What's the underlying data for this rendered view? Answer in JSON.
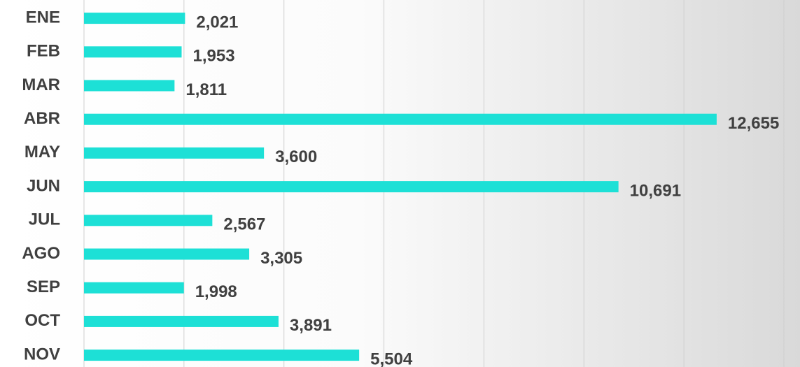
{
  "chart_data": {
    "type": "bar",
    "orientation": "horizontal",
    "categories": [
      "ENE",
      "FEB",
      "MAR",
      "ABR",
      "MAY",
      "JUN",
      "JUL",
      "AGO",
      "SEP",
      "OCT",
      "NOV"
    ],
    "values": [
      2021,
      1953,
      1811,
      12655,
      3600,
      10691,
      2567,
      3305,
      1998,
      3891,
      5504
    ],
    "value_labels": [
      "2,021",
      "1,953",
      "1,811",
      "12,655",
      "3,600",
      "10,691",
      "2,567",
      "3,305",
      "1,998",
      "3,891",
      "5,504"
    ],
    "color": "#1de0d6",
    "xlim": [
      0,
      14000
    ],
    "xticks": [
      0,
      2000,
      4000,
      6000,
      8000,
      10000,
      12000,
      14000
    ],
    "grid": true
  }
}
